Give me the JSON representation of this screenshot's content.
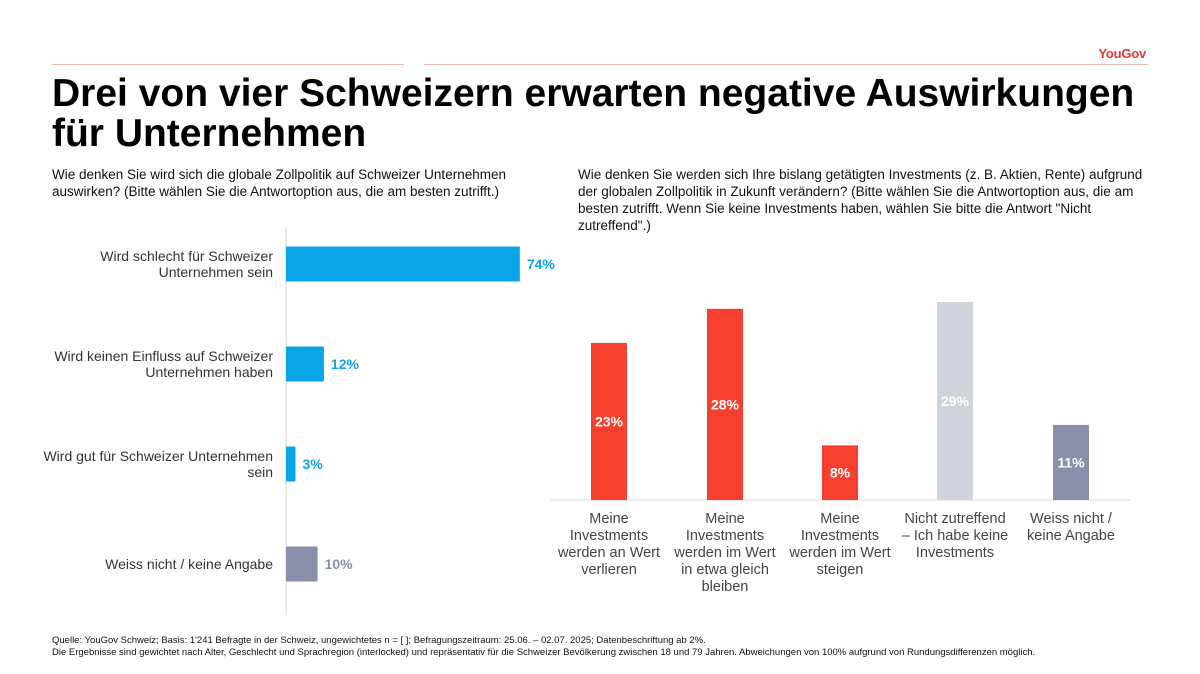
{
  "logo": "YouGov",
  "title": "Drei von vier Schweizern erwarten negative Auswirkungen für Unternehmen",
  "question_left": "Wie denken Sie wird sich die globale Zollpolitik auf Schweizer Unternehmen auswirken? (Bitte wählen Sie die Antwortoption aus, die am besten zutrifft.)",
  "question_right": "Wie denken Sie werden sich Ihre bislang getätigten Investments (z. B. Aktien, Rente) aufgrund der globalen Zollpolitik in Zukunft verändern? (Bitte wählen Sie die Antwortoption aus, die am besten zutrifft. Wenn Sie keine Investments haben, wählen Sie bitte die Antwort \"Nicht zutreffend\".)",
  "footer": {
    "line1": "Quelle: YouGov Schweiz; Basis: 1'241 Befragte in der Schweiz, ungewichtetes n = [ ]; Befragungszeitraum: 25.06. – 02.07. 2025; Datenbeschriftung ab 2%.",
    "line2": "Die Ergebnisse sind gewichtet nach Alter, Geschlecht und Sprachregion (interlocked) und repräsentativ für die Schweizer Bevölkerung zwischen 18 und 79 Jahren. Abweichungen von 100% aufgrund von Rundungsdifferenzen möglich."
  },
  "chart_data": [
    {
      "type": "bar",
      "orientation": "horizontal",
      "categories": [
        [
          "Wird schlecht für Schweizer",
          "Unternehmen sein"
        ],
        [
          "Wird keinen Einfluss auf Schweizer",
          "Unternehmen haben"
        ],
        [
          "Wird gut für Schweizer Unternehmen",
          "sein"
        ],
        [
          "Weiss nicht / keine Angabe"
        ]
      ],
      "values": [
        74,
        12,
        3,
        10
      ],
      "labels": [
        "74%",
        "12%",
        "3%",
        "10%"
      ],
      "colors": [
        "#0aa5e8",
        "#0aa5e8",
        "#0aa5e8",
        "#8790a8"
      ],
      "xlim": [
        0,
        100
      ]
    },
    {
      "type": "bar",
      "orientation": "vertical",
      "categories": [
        [
          "Meine",
          "Investments",
          "werden an Wert",
          "verlieren"
        ],
        [
          "Meine",
          "Investments",
          "werden im Wert",
          "in etwa gleich",
          "bleiben"
        ],
        [
          "Meine",
          "Investments",
          "werden im Wert",
          "steigen"
        ],
        [
          "Nicht zutreffend",
          "– Ich habe keine",
          "Investments"
        ],
        [
          "Weiss nicht /",
          "keine Angabe"
        ]
      ],
      "values": [
        23,
        28,
        8,
        29,
        11
      ],
      "labels": [
        "23%",
        "28%",
        "8%",
        "29%",
        "11%"
      ],
      "colors": [
        "#f5402f",
        "#f5402f",
        "#f5402f",
        "#d0d4dc",
        "#8790a8"
      ],
      "ylim": [
        0,
        30
      ]
    }
  ]
}
